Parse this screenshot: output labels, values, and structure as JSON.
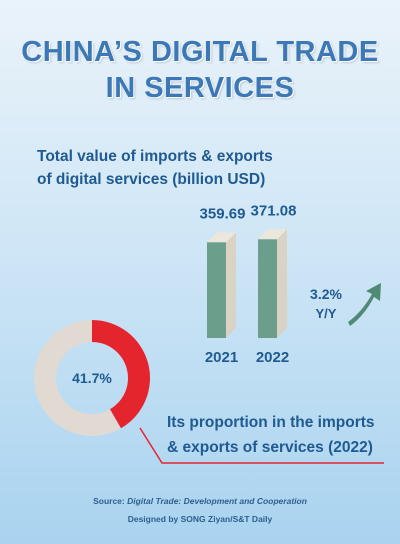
{
  "title_line1": "CHINA’S DIGITAL TRADE",
  "title_line2": "IN SERVICES",
  "subtitle_line1": "Total value of imports & exports",
  "subtitle_line2": "of digital services (billion USD)",
  "growth": {
    "value": "3.2%",
    "label": "Y/Y"
  },
  "caption_line1": "Its proportion in the imports",
  "caption_line2": "& exports of services (2022)",
  "source_prefix": "Source:",
  "source_title": "Digital Trade: Development and Cooperation",
  "credit": "Designed by SONG Ziyan/S&T Daily",
  "colors": {
    "title": "#3b78b5",
    "text": "#1f5a91",
    "bar_front": "#6c9e8c",
    "bar_side": "#d9d3c5",
    "bar_top": "#ece7dc",
    "donut_share": "#e5252d",
    "donut_rest": "#e0dad2",
    "arrow": "#4f8a75",
    "line": "#e5252d"
  },
  "chart_data": [
    {
      "type": "bar",
      "categories": [
        "2021",
        "2022"
      ],
      "values": [
        359.69,
        371.08
      ],
      "value_labels": [
        "359.69",
        "371.08"
      ]
    },
    {
      "type": "pie",
      "slices": [
        {
          "value": 41.7
        },
        {
          "value": 58.3
        }
      ],
      "center_label": "41.7%"
    }
  ]
}
